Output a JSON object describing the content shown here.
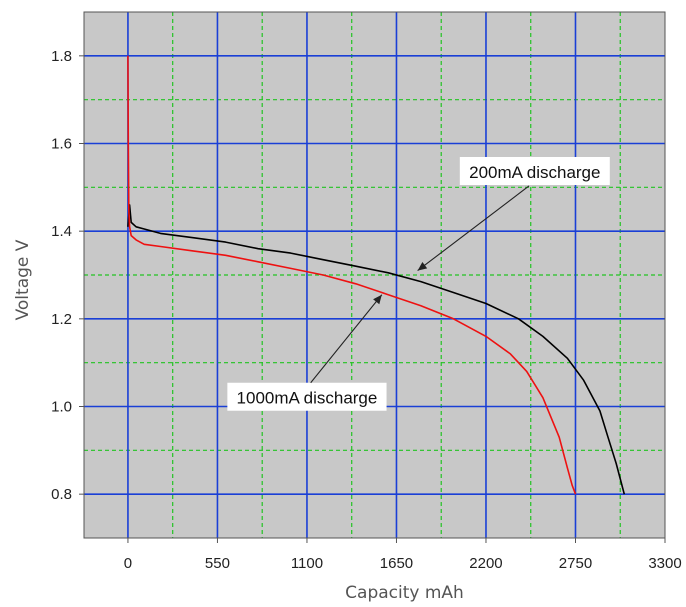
{
  "chart_data": {
    "type": "line",
    "title": "",
    "xlabel": "Capacity mAh",
    "ylabel": "Voltage V",
    "xlim": [
      -270,
      3300
    ],
    "ylim": [
      0.7,
      1.9
    ],
    "x_ticks": [
      0,
      550,
      1100,
      1650,
      2200,
      2750,
      3300
    ],
    "x_tick_labels": [
      "0",
      "550",
      "1100",
      "1650",
      "2200",
      "2750",
      "3300"
    ],
    "y_ticks": [
      0.8,
      1.0,
      1.2,
      1.4,
      1.6,
      1.8
    ],
    "y_tick_labels": [
      "0.8",
      "1.0",
      "1.2",
      "1.4",
      "1.6",
      "1.8"
    ],
    "grid": true,
    "background_color": "#c8c8c8",
    "major_grid_color": "#1a3fd6",
    "minor_grid_color": "#22c322",
    "series": [
      {
        "name": "200mA discharge",
        "color": "#000000",
        "x": [
          0,
          10,
          20,
          50,
          100,
          200,
          400,
          600,
          800,
          1000,
          1200,
          1400,
          1600,
          1800,
          2000,
          2200,
          2400,
          2550,
          2700,
          2800,
          2900,
          2950,
          3000,
          3050
        ],
        "y": [
          1.41,
          1.46,
          1.42,
          1.41,
          1.405,
          1.395,
          1.385,
          1.375,
          1.36,
          1.35,
          1.335,
          1.32,
          1.305,
          1.285,
          1.26,
          1.235,
          1.2,
          1.16,
          1.11,
          1.06,
          0.99,
          0.93,
          0.87,
          0.8
        ]
      },
      {
        "name": "1000mA discharge",
        "color": "#ee1111",
        "x": [
          0,
          2,
          5,
          10,
          20,
          50,
          100,
          200,
          400,
          600,
          800,
          1000,
          1200,
          1400,
          1600,
          1800,
          2000,
          2200,
          2350,
          2450,
          2550,
          2650,
          2700,
          2730,
          2750
        ],
        "y": [
          1.8,
          1.6,
          1.45,
          1.41,
          1.39,
          1.38,
          1.37,
          1.365,
          1.355,
          1.345,
          1.33,
          1.315,
          1.3,
          1.28,
          1.255,
          1.23,
          1.2,
          1.16,
          1.12,
          1.08,
          1.02,
          0.93,
          0.86,
          0.82,
          0.8
        ]
      }
    ],
    "annotations": [
      {
        "text": "200mA discharge",
        "label_at": [
          2500,
          1.535
        ],
        "arrow_to": [
          1780,
          1.31
        ]
      },
      {
        "text": "1000mA discharge",
        "label_at": [
          1100,
          1.02
        ],
        "arrow_to": [
          1560,
          1.255
        ]
      }
    ]
  }
}
